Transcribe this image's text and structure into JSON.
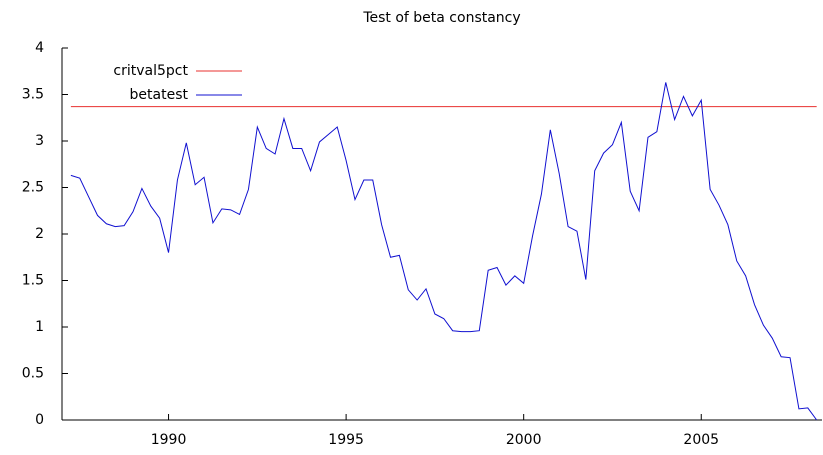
{
  "chart_data": {
    "type": "line",
    "title": "Test of beta constancy",
    "x": [
      1987.25,
      1987.5,
      1987.75,
      1988,
      1988.25,
      1988.5,
      1988.75,
      1989,
      1989.25,
      1989.5,
      1989.75,
      1990,
      1990.25,
      1990.5,
      1990.75,
      1991,
      1991.25,
      1991.5,
      1991.75,
      1992,
      1992.25,
      1992.5,
      1992.75,
      1993,
      1993.25,
      1993.5,
      1993.75,
      1994,
      1994.25,
      1994.5,
      1994.75,
      1995,
      1995.25,
      1995.5,
      1995.75,
      1996,
      1996.25,
      1996.5,
      1996.75,
      1997,
      1997.25,
      1997.5,
      1997.75,
      1998,
      1998.25,
      1998.5,
      1998.75,
      1999,
      1999.25,
      1999.5,
      1999.75,
      2000,
      2000.25,
      2000.5,
      2000.75,
      2001,
      2001.25,
      2001.5,
      2001.75,
      2002,
      2002.25,
      2002.5,
      2002.75,
      2003,
      2003.25,
      2003.5,
      2003.75,
      2004,
      2004.25,
      2004.5,
      2004.75,
      2005,
      2005.25,
      2005.5,
      2005.75,
      2006,
      2006.25,
      2006.5,
      2006.75,
      2007,
      2007.25,
      2007.5,
      2007.75,
      2008,
      2008.25
    ],
    "series": [
      {
        "name": "critval5pct",
        "color": "#e8302f",
        "values": [
          3.37,
          3.37,
          3.37,
          3.37,
          3.37,
          3.37,
          3.37,
          3.37,
          3.37,
          3.37,
          3.37,
          3.37,
          3.37,
          3.37,
          3.37,
          3.37,
          3.37,
          3.37,
          3.37,
          3.37,
          3.37,
          3.37,
          3.37,
          3.37,
          3.37,
          3.37,
          3.37,
          3.37,
          3.37,
          3.37,
          3.37,
          3.37,
          3.37,
          3.37,
          3.37,
          3.37,
          3.37,
          3.37,
          3.37,
          3.37,
          3.37,
          3.37,
          3.37,
          3.37,
          3.37,
          3.37,
          3.37,
          3.37,
          3.37,
          3.37,
          3.37,
          3.37,
          3.37,
          3.37,
          3.37,
          3.37,
          3.37,
          3.37,
          3.37,
          3.37,
          3.37,
          3.37,
          3.37,
          3.37,
          3.37,
          3.37,
          3.37,
          3.37,
          3.37,
          3.37,
          3.37,
          3.37,
          3.37,
          3.37,
          3.37,
          3.37,
          3.37,
          3.37,
          3.37,
          3.37,
          3.37,
          3.37,
          3.37,
          3.37,
          3.37
        ]
      },
      {
        "name": "betatest",
        "color": "#1010d0",
        "values": [
          2.63,
          2.6,
          2.4,
          2.2,
          2.11,
          2.08,
          2.09,
          2.24,
          2.49,
          2.3,
          2.17,
          1.8,
          2.58,
          2.98,
          2.53,
          2.61,
          2.12,
          2.27,
          2.26,
          2.21,
          2.48,
          3.15,
          2.92,
          2.86,
          3.24,
          2.92,
          2.92,
          2.68,
          2.99,
          3.07,
          3.15,
          2.79,
          2.37,
          2.58,
          2.58,
          2.1,
          1.75,
          1.77,
          1.4,
          1.29,
          1.41,
          1.14,
          1.09,
          0.96,
          0.95,
          0.95,
          0.96,
          1.61,
          1.64,
          1.45,
          1.55,
          1.47,
          1.98,
          2.43,
          3.12,
          2.65,
          2.08,
          2.03,
          1.51,
          2.68,
          2.87,
          2.96,
          3.2,
          2.46,
          2.25,
          3.04,
          3.1,
          3.63,
          3.23,
          3.48,
          3.27,
          3.44,
          2.48,
          2.31,
          2.1,
          1.71,
          1.55,
          1.24,
          1.02,
          0.88,
          0.68,
          0.67,
          0.12,
          0.13,
          0
        ]
      }
    ],
    "xlim": [
      1987,
      2008.4
    ],
    "xticks": [
      1990,
      1995,
      2000,
      2005
    ],
    "ylim": [
      0,
      4
    ],
    "yticks": [
      0,
      0.5,
      1,
      1.5,
      2,
      2.5,
      3,
      3.5,
      4
    ],
    "legend": "top-left"
  }
}
